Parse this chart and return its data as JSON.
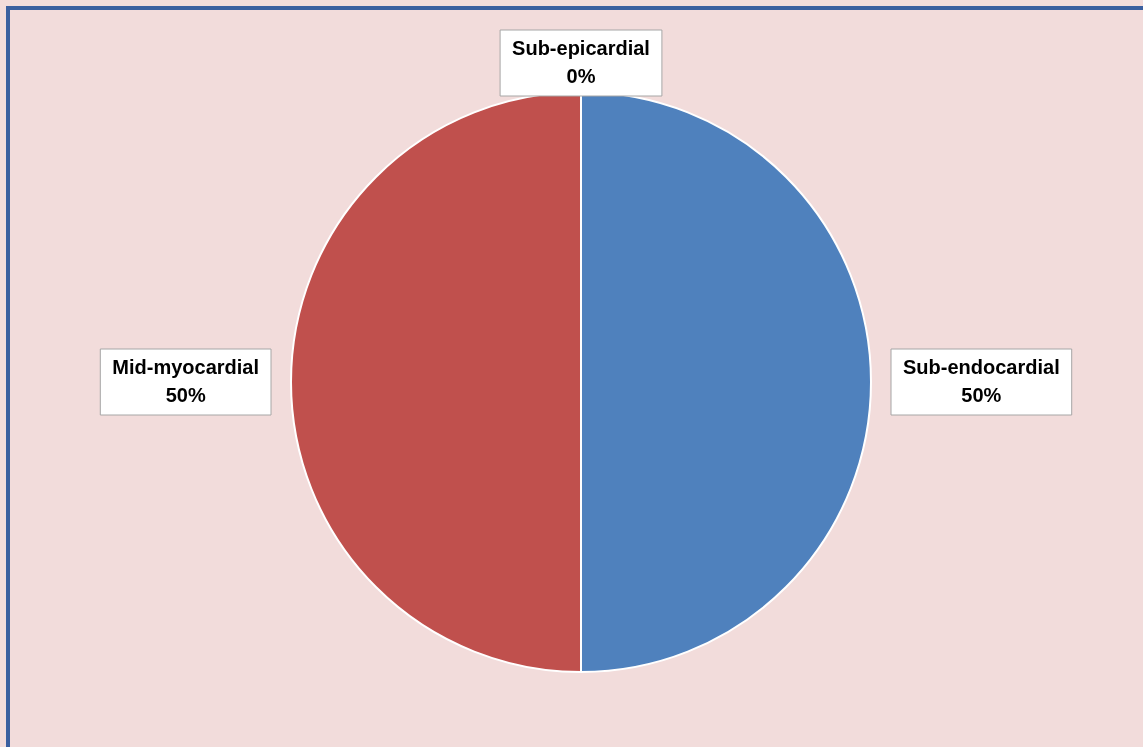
{
  "chart_data": {
    "type": "pie",
    "categories": [
      "Sub-endocardial",
      "Mid-myocardial",
      "Sub-epicardial"
    ],
    "values": [
      50,
      50,
      0
    ],
    "colors": [
      "#4f81bd",
      "#c0504d",
      "#9bbb59"
    ],
    "value_labels": [
      "50%",
      "50%",
      "0%"
    ],
    "legend": false
  }
}
